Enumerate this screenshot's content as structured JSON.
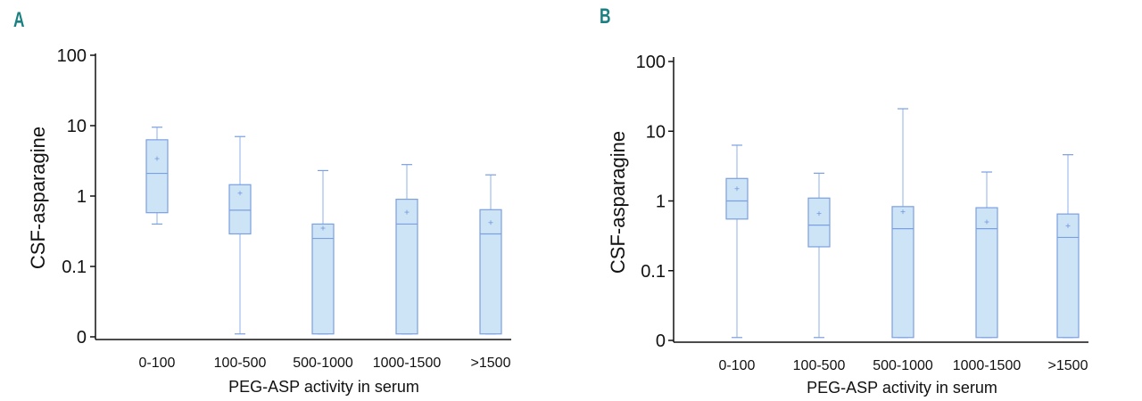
{
  "colors": {
    "panel_letter": "#1a8080",
    "box_fill": "#cde4f7",
    "box_stroke": "#7b9fe0",
    "whisker": "#8fb1ea",
    "axis": "#111111"
  },
  "chart_data": [
    {
      "panel": "A",
      "type": "box",
      "title": "",
      "xlabel": "PEG-ASP activity in serum",
      "ylabel": "CSF-asparagine",
      "yscale": "log",
      "y_ticks": [
        {
          "value": 100,
          "label": "100"
        },
        {
          "value": 10,
          "label": "10"
        },
        {
          "value": 1,
          "label": "1"
        },
        {
          "value": 0.1,
          "label": "0.1"
        },
        {
          "value": 0.01,
          "label": "0"
        }
      ],
      "categories": [
        "0-100",
        "100-500",
        "500-1000",
        "1000-1500",
        ">1500"
      ],
      "boxes": [
        {
          "category": "0-100",
          "min": 0.4,
          "q1": 0.58,
          "median": 2.1,
          "q3": 6.3,
          "max": 9.5,
          "mean": 3.4
        },
        {
          "category": "100-500",
          "min": 0.011,
          "q1": 0.29,
          "median": 0.63,
          "q3": 1.45,
          "max": 7.0,
          "mean": 1.1
        },
        {
          "category": "500-1000",
          "min": 0.011,
          "q1": 0.011,
          "median": 0.25,
          "q3": 0.4,
          "max": 2.3,
          "mean": 0.35
        },
        {
          "category": "1000-1500",
          "min": 0.011,
          "q1": 0.011,
          "median": 0.4,
          "q3": 0.9,
          "max": 2.8,
          "mean": 0.59
        },
        {
          "category": ">1500",
          "min": 0.011,
          "q1": 0.011,
          "median": 0.29,
          "q3": 0.64,
          "max": 2.0,
          "mean": 0.42
        }
      ]
    },
    {
      "panel": "B",
      "type": "box",
      "title": "",
      "xlabel": "PEG-ASP activity in serum",
      "ylabel": "CSF-asparagine",
      "yscale": "log",
      "y_ticks": [
        {
          "value": 100,
          "label": "100"
        },
        {
          "value": 10,
          "label": "10"
        },
        {
          "value": 1,
          "label": "1"
        },
        {
          "value": 0.1,
          "label": "0.1"
        },
        {
          "value": 0.01,
          "label": "0"
        }
      ],
      "categories": [
        "0-100",
        "100-500",
        "500-1000",
        "1000-1500",
        ">1500"
      ],
      "boxes": [
        {
          "category": "0-100",
          "min": 0.011,
          "q1": 0.55,
          "median": 1.0,
          "q3": 2.1,
          "max": 6.3,
          "mean": 1.5
        },
        {
          "category": "100-500",
          "min": 0.011,
          "q1": 0.22,
          "median": 0.45,
          "q3": 1.1,
          "max": 2.5,
          "mean": 0.66
        },
        {
          "category": "500-1000",
          "min": 0.011,
          "q1": 0.011,
          "median": 0.4,
          "q3": 0.83,
          "max": 21.0,
          "mean": 0.7
        },
        {
          "category": "1000-1500",
          "min": 0.011,
          "q1": 0.011,
          "median": 0.4,
          "q3": 0.8,
          "max": 2.6,
          "mean": 0.5
        },
        {
          "category": ">1500",
          "min": 0.011,
          "q1": 0.011,
          "median": 0.3,
          "q3": 0.65,
          "max": 4.6,
          "mean": 0.44
        }
      ]
    }
  ]
}
